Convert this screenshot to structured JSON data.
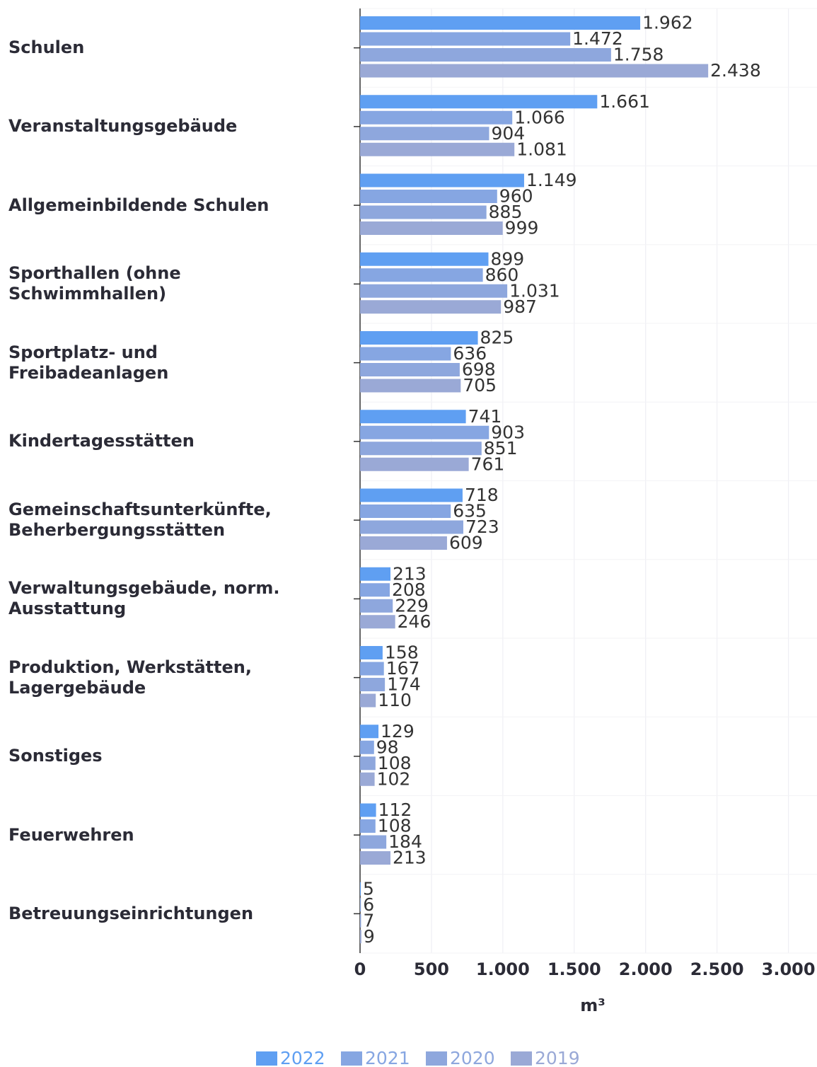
{
  "chart_data": {
    "type": "bar",
    "orientation": "horizontal",
    "categories": [
      "Schulen",
      "Veranstaltungsgebäude",
      "Allgemeinbildende Schulen",
      "Sporthallen (ohne Schwimmhallen)",
      "Sportplatz- und Freibadeanlagen",
      "Kindertagesstätten",
      "Gemeinschaftsunterkünfte, Beherbergungsstätten",
      "Verwaltungsgebäude, norm. Ausstattung",
      "Produktion, Werkstätten, Lagergebäude",
      "Sonstiges",
      "Feuerwehren",
      "Betreuungseinrichtungen"
    ],
    "series": [
      {
        "name": "2022",
        "color": "#5f9ff2",
        "values": [
          1962,
          1661,
          1149,
          899,
          825,
          741,
          718,
          213,
          158,
          129,
          112,
          5
        ],
        "value_labels": [
          "1.962",
          "1.661",
          "1.149",
          "899",
          "825",
          "741",
          "718",
          "213",
          "158",
          "129",
          "112",
          "5"
        ]
      },
      {
        "name": "2021",
        "color": "#86a6e2",
        "values": [
          1472,
          1066,
          960,
          860,
          636,
          903,
          635,
          208,
          167,
          98,
          108,
          6
        ],
        "value_labels": [
          "1.472",
          "1.066",
          "960",
          "860",
          "636",
          "903",
          "635",
          "208",
          "167",
          "98",
          "108",
          "6"
        ]
      },
      {
        "name": "2020",
        "color": "#8ea7dd",
        "values": [
          1758,
          904,
          885,
          1031,
          698,
          851,
          723,
          229,
          174,
          108,
          184,
          7
        ],
        "value_labels": [
          "1.758",
          "904",
          "885",
          "1.031",
          "698",
          "851",
          "723",
          "229",
          "174",
          "108",
          "184",
          "7"
        ]
      },
      {
        "name": "2019",
        "color": "#9aa9d6",
        "values": [
          2438,
          1081,
          999,
          987,
          705,
          761,
          609,
          246,
          110,
          102,
          213,
          9
        ],
        "value_labels": [
          "2.438",
          "1.081",
          "999",
          "987",
          "705",
          "761",
          "609",
          "246",
          "110",
          "102",
          "213",
          "9"
        ]
      }
    ],
    "x_label": "m³",
    "xlim": [
      0,
      3200
    ],
    "xticks": [
      0,
      500,
      {
        "value": 1000,
        "label": "1.000"
      },
      {
        "value": 1500,
        "label": "1.500"
      },
      {
        "value": 2000,
        "label": "2.000"
      },
      {
        "value": 2500,
        "label": "2.500"
      },
      {
        "value": 3000,
        "label": "3.000"
      }
    ],
    "grid": true,
    "legend": "bottom"
  }
}
